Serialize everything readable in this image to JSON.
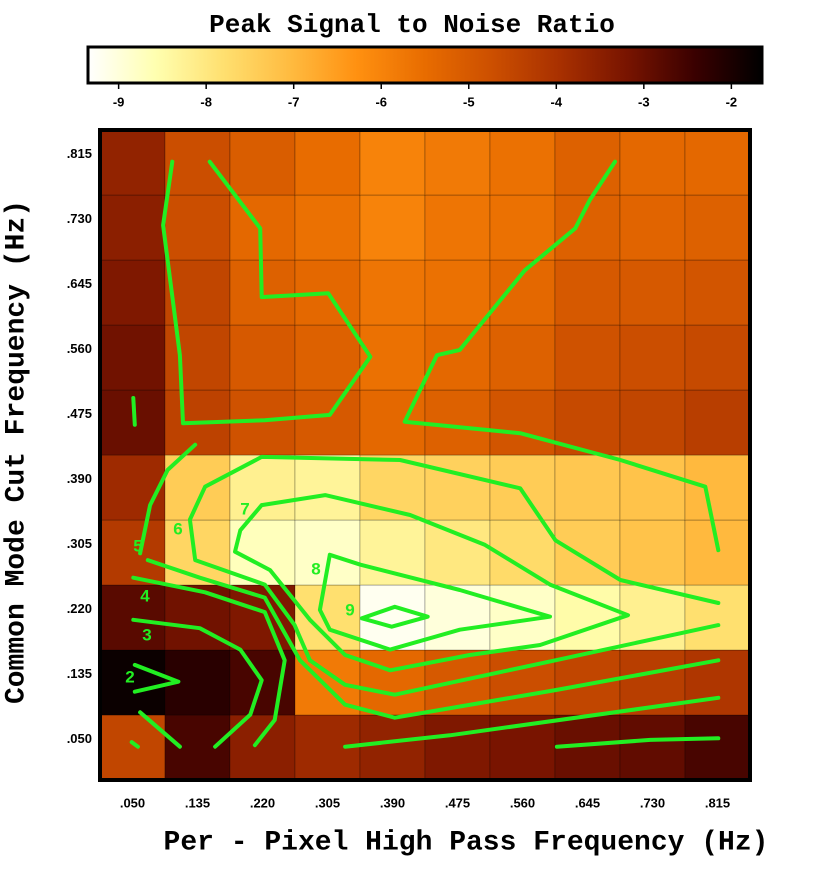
{
  "chart_data": {
    "type": "heatmap",
    "title": "Peak Signal to Noise Ratio",
    "xlabel": "Per - Pixel High Pass Frequency (Hz)",
    "ylabel": "Common Mode Cut Frequency (Hz)",
    "xlim": [
      0.0075,
      0.8575
    ],
    "ylim": [
      0.0075,
      0.8575
    ],
    "xticks": [
      {
        "value": 0.05,
        "label": ".050"
      },
      {
        "value": 0.135,
        "label": ".135"
      },
      {
        "value": 0.22,
        "label": ".220"
      },
      {
        "value": 0.305,
        "label": ".305"
      },
      {
        "value": 0.39,
        "label": ".390"
      },
      {
        "value": 0.475,
        "label": ".475"
      },
      {
        "value": 0.56,
        "label": ".560"
      },
      {
        "value": 0.645,
        "label": ".645"
      },
      {
        "value": 0.73,
        "label": ".730"
      },
      {
        "value": 0.815,
        "label": ".815"
      }
    ],
    "yticks": [
      {
        "value": 0.05,
        "label": ".050"
      },
      {
        "value": 0.135,
        "label": ".135"
      },
      {
        "value": 0.22,
        "label": ".220"
      },
      {
        "value": 0.305,
        "label": ".305"
      },
      {
        "value": 0.39,
        "label": ".390"
      },
      {
        "value": 0.475,
        "label": ".475"
      },
      {
        "value": 0.56,
        "label": ".560"
      },
      {
        "value": 0.645,
        "label": ".645"
      },
      {
        "value": 0.73,
        "label": ".730"
      },
      {
        "value": 0.815,
        "label": ".815"
      }
    ],
    "z": [
      [
        -4.5,
        -2.6,
        -3.5,
        -3.8,
        -3.6,
        -3.3,
        -3.2,
        -3.0,
        -2.9,
        -2.6
      ],
      [
        -1.8,
        -2.2,
        -2.6,
        -5.8,
        -5.4,
        -5.0,
        -4.7,
        -4.5,
        -4.3,
        -4.1
      ],
      [
        -2.8,
        -3.1,
        -3.3,
        -7.8,
        -9.2,
        -9.0,
        -8.8,
        -8.5,
        -8.2,
        -7.8
      ],
      [
        -4.2,
        -7.6,
        -8.7,
        -8.8,
        -8.3,
        -8.0,
        -7.7,
        -7.4,
        -7.2,
        -7.0
      ],
      [
        -3.8,
        -7.4,
        -8.2,
        -8.3,
        -7.6,
        -7.5,
        -7.4,
        -7.3,
        -7.2,
        -7.0
      ],
      [
        -3.0,
        -4.4,
        -4.8,
        -5.0,
        -5.4,
        -5.2,
        -4.9,
        -4.6,
        -4.5,
        -4.3
      ],
      [
        -3.1,
        -4.5,
        -5.0,
        -5.2,
        -5.6,
        -5.4,
        -5.2,
        -4.8,
        -4.7,
        -4.6
      ],
      [
        -3.3,
        -4.5,
        -5.2,
        -5.4,
        -5.7,
        -5.6,
        -5.4,
        -5.0,
        -5.0,
        -4.9
      ],
      [
        -3.5,
        -4.7,
        -5.4,
        -5.6,
        -6.0,
        -5.7,
        -5.6,
        -5.2,
        -5.3,
        -5.2
      ],
      [
        -3.6,
        -4.7,
        -5.1,
        -5.5,
        -6.0,
        -5.8,
        -5.6,
        -5.2,
        -5.4,
        -5.4
      ]
    ],
    "clim": [
      -9.35,
      -1.65
    ],
    "cticks": [
      -9,
      -8,
      -7,
      -6,
      -5,
      -4,
      -3,
      -2
    ],
    "colormap": [
      "#ffffff",
      "#ffffb0",
      "#ffe070",
      "#ffbb40",
      "#ff9010",
      "#e86c00",
      "#cc4f00",
      "#a83000",
      "#781400",
      "#3a0000",
      "#000000"
    ],
    "contour_color": "#22ee22",
    "contours": [
      {
        "level": 2,
        "x": [
          0.053,
          0.11,
          0.053
        ],
        "y": [
          0.158,
          0.136,
          0.123
        ]
      },
      {
        "level": 3,
        "x": [
          0.051,
          0.138,
          0.191,
          0.219,
          0.204,
          0.158,
          null,
          0.605,
          0.727,
          0.816,
          null,
          0.049,
          0.057,
          null,
          0.06,
          0.112
        ],
        "y": [
          0.217,
          0.206,
          0.178,
          0.138,
          0.093,
          0.051,
          null,
          0.051,
          0.06,
          0.062,
          null,
          0.057,
          0.051,
          null,
          0.096,
          0.051
        ]
      },
      {
        "level": 4,
        "x": [
          0.051,
          0.145,
          0.223,
          0.249,
          0.236,
          0.21,
          null,
          0.328,
          0.465,
          0.816
        ],
        "y": [
          0.272,
          0.253,
          0.227,
          0.164,
          0.086,
          0.053,
          null,
          0.051,
          0.066,
          0.115
        ]
      },
      {
        "level": 5,
        "x": [
          0.102,
          0.09,
          0.112,
          0.116,
          0.223,
          0.308,
          0.361,
          0.306,
          0.219,
          0.217,
          0.151,
          null,
          0.051,
          0.053,
          null,
          0.06,
          0.073,
          0.096,
          0.132,
          null,
          0.07,
          0.138,
          0.223,
          0.269,
          0.328,
          0.393,
          0.603,
          0.816,
          null,
          0.681,
          0.648,
          0.629,
          0.563,
          0.478,
          0.448,
          0.406,
          0.557,
          0.688,
          0.799,
          0.816
        ],
        "y": [
          0.816,
          0.733,
          0.563,
          0.474,
          0.478,
          0.485,
          0.561,
          0.644,
          0.639,
          0.729,
          0.816,
          null,
          0.507,
          0.472,
          null,
          0.304,
          0.367,
          0.413,
          0.446,
          null,
          0.295,
          0.272,
          0.246,
          0.164,
          0.106,
          0.089,
          0.125,
          0.164,
          null,
          0.816,
          0.766,
          0.729,
          0.674,
          0.57,
          0.563,
          0.476,
          0.461,
          0.426,
          0.391,
          0.308
        ]
      },
      {
        "level": 6,
        "x": [
          0.816,
          0.603,
          0.393,
          0.328,
          0.282,
          0.262,
          0.223,
          0.132,
          0.125,
          0.145,
          0.219,
          0.4,
          0.557,
          0.603,
          0.688,
          0.816
        ],
        "y": [
          0.21,
          0.164,
          0.119,
          0.132,
          0.164,
          0.21,
          0.263,
          0.295,
          0.348,
          0.391,
          0.43,
          0.426,
          0.389,
          0.321,
          0.269,
          0.239
        ]
      },
      {
        "level": 7,
        "x": [
          0.219,
          0.302,
          0.413,
          0.511,
          0.596,
          0.698,
          0.583,
          0.491,
          0.387,
          0.328,
          0.282,
          0.23,
          0.184,
          0.191,
          0.219
        ],
        "y": [
          0.367,
          0.38,
          0.354,
          0.315,
          0.263,
          0.223,
          0.184,
          0.171,
          0.151,
          0.171,
          0.217,
          0.282,
          0.306,
          0.334,
          0.367
        ]
      },
      {
        "level": 8,
        "x": [
          0.308,
          0.348,
          0.478,
          0.596,
          0.478,
          0.387,
          0.308,
          0.295,
          0.308
        ],
        "y": [
          0.302,
          0.289,
          0.256,
          0.221,
          0.204,
          0.178,
          0.204,
          0.23,
          0.302
        ]
      },
      {
        "level": 9,
        "x": [
          0.35,
          0.393,
          0.436,
          0.389,
          0.35
        ],
        "y": [
          0.219,
          0.234,
          0.221,
          0.208,
          0.219
        ]
      }
    ]
  }
}
